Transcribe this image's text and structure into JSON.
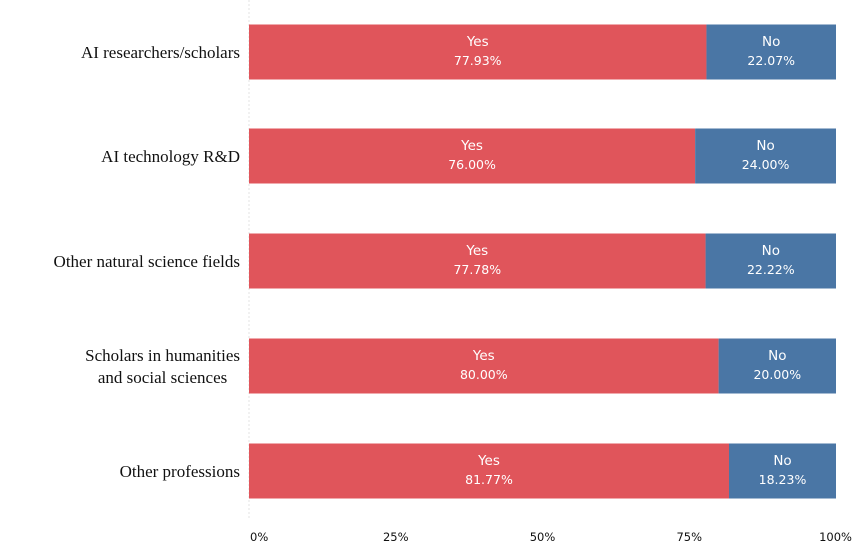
{
  "chart_data": {
    "type": "bar",
    "orientation": "horizontal",
    "stacked": true,
    "categories": [
      [
        "AI researchers/scholars"
      ],
      [
        "AI technology R&D"
      ],
      [
        "Other natural science fields"
      ],
      [
        "Scholars in humanities",
        "and social sciences"
      ],
      [
        "Other professions"
      ]
    ],
    "series": [
      {
        "name": "Yes",
        "color": "#e0555b",
        "values": [
          77.93,
          76.0,
          77.78,
          80.0,
          81.77
        ],
        "labels": [
          "77.93%",
          "76.00%",
          "77.78%",
          "80.00%",
          "81.77%"
        ]
      },
      {
        "name": "No",
        "color": "#4a76a5",
        "values": [
          22.07,
          24.0,
          22.22,
          20.0,
          18.23
        ],
        "labels": [
          "22.07%",
          "24.00%",
          "22.22%",
          "20.00%",
          "18.23%"
        ]
      }
    ],
    "xlim": [
      0,
      100
    ],
    "xticks": [
      "0%",
      "25%",
      "50%",
      "75%",
      "100%"
    ],
    "grid": false,
    "legend": "none"
  }
}
